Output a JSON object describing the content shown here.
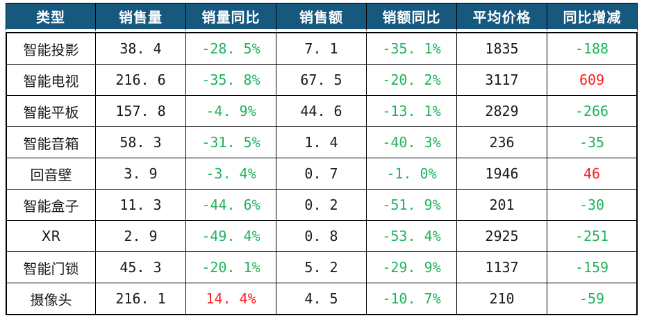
{
  "colors": {
    "header_bg": "#16587E",
    "header_text": "#FFFFFF",
    "body_text": "#1A1A1A",
    "border": "#000000",
    "negative_green": "#1EB35B",
    "positive_red": "#FA1E1E"
  },
  "table": {
    "headers": [
      "类型",
      "销售量",
      "销量同比",
      "销售额",
      "销额同比",
      "平均价格",
      "同比增减"
    ],
    "yoy_columns": [
      2,
      4,
      6
    ],
    "display_rows": [
      [
        "智能投影",
        "38. 4",
        "-28. 5%",
        "7. 1",
        "-35. 1%",
        "1835",
        "-188"
      ],
      [
        "智能电视",
        "216. 6",
        "-35. 8%",
        "67. 5",
        "-20. 2%",
        "3117",
        "609"
      ],
      [
        "智能平板",
        "157. 8",
        "-4. 9%",
        "44. 6",
        "-13. 1%",
        "2829",
        "-266"
      ],
      [
        "智能音箱",
        "58. 3",
        "-31. 5%",
        "1. 4",
        "-40. 3%",
        "236",
        "-35"
      ],
      [
        "回音壁",
        "3. 9",
        "-3. 4%",
        "0. 7",
        "-1. 0%",
        "1946",
        "46"
      ],
      [
        "智能盒子",
        "11. 3",
        "-44. 6%",
        "0. 2",
        "-51. 9%",
        "201",
        "-30"
      ],
      [
        "XR",
        "2. 9",
        "-49. 4%",
        "0. 8",
        "-53. 4%",
        "2925",
        "-251"
      ],
      [
        "智能门锁",
        "45. 3",
        "-20. 1%",
        "5. 2",
        "-29. 9%",
        "1137",
        "-159"
      ],
      [
        "摄像头",
        "216. 1",
        "14. 4%",
        "4. 5",
        "-10. 7%",
        "210",
        "-59"
      ]
    ]
  },
  "chart_data": {
    "type": "table",
    "columns": [
      "类型",
      "销售量",
      "销量同比",
      "销售额",
      "销额同比",
      "平均价格",
      "同比增减"
    ],
    "rows": [
      [
        "智能投影",
        38.4,
        "-28.5%",
        7.1,
        "-35.1%",
        1835,
        -188
      ],
      [
        "智能电视",
        216.6,
        "-35.8%",
        67.5,
        "-20.2%",
        3117,
        609
      ],
      [
        "智能平板",
        157.8,
        "-4.9%",
        44.6,
        "-13.1%",
        2829,
        -266
      ],
      [
        "智能音箱",
        58.3,
        "-31.5%",
        1.4,
        "-40.3%",
        236,
        -35
      ],
      [
        "回音壁",
        3.9,
        "-3.4%",
        0.7,
        "-1.0%",
        1946,
        46
      ],
      [
        "智能盒子",
        11.3,
        "-44.6%",
        0.2,
        "-51.9%",
        201,
        -30
      ],
      [
        "XR",
        2.9,
        "-49.4%",
        0.8,
        "-53.4%",
        2925,
        -251
      ],
      [
        "智能门锁",
        45.3,
        "-20.1%",
        5.2,
        "-29.9%",
        1137,
        -159
      ],
      [
        "摄像头",
        216.1,
        "14.4%",
        4.5,
        "-10.7%",
        210,
        -59
      ]
    ],
    "value_color_rule": "negative values green, positive values red (yoy columns only)"
  }
}
